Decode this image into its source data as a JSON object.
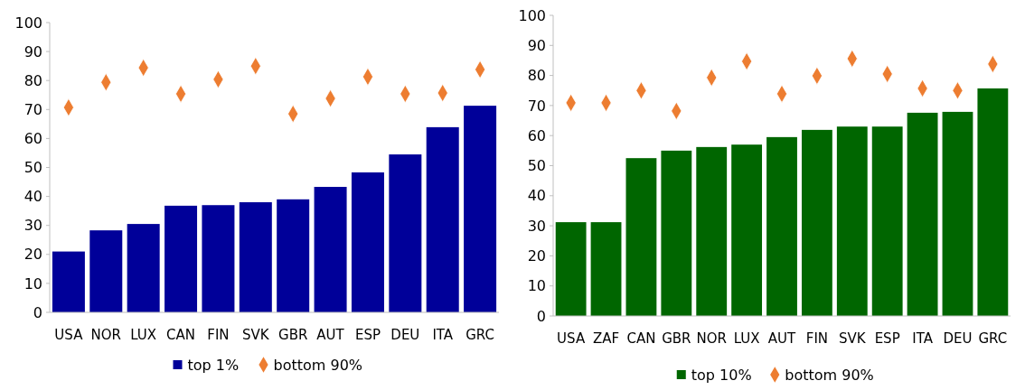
{
  "chart_data": [
    {
      "type": "bar",
      "categories": [
        "USA",
        "NOR",
        "LUX",
        "CAN",
        "FIN",
        "SVK",
        "GBR",
        "AUT",
        "ESP",
        "DEU",
        "ITA",
        "GRC"
      ],
      "series": [
        {
          "name": "top 1%",
          "color": "#000099",
          "values": [
            21,
            28.3,
            30.5,
            36.8,
            37,
            38,
            39,
            43.3,
            48.3,
            54.5,
            63.9,
            71.3
          ]
        },
        {
          "name": "bottom 90%",
          "type": "scatter",
          "marker": "diamond",
          "color": "#ed7d31",
          "values": [
            70.7,
            79.4,
            84.4,
            75.4,
            80.4,
            85,
            68.5,
            73.8,
            81.3,
            75.4,
            75.7,
            83.8
          ]
        }
      ],
      "ylim": [
        0,
        100
      ],
      "yticks": [
        0,
        10,
        20,
        30,
        40,
        50,
        60,
        70,
        80,
        90,
        100
      ],
      "legend": "bottom"
    },
    {
      "type": "bar",
      "categories": [
        "USA",
        "ZAF",
        "CAN",
        "GBR",
        "NOR",
        "LUX",
        "AUT",
        "FIN",
        "SVK",
        "ESP",
        "ITA",
        "DEU",
        "GRC"
      ],
      "series": [
        {
          "name": "top 10%",
          "color": "#006600",
          "values": [
            31.2,
            31.2,
            52.5,
            55,
            56.2,
            57,
            59.5,
            61.9,
            63,
            63,
            67.6,
            67.9,
            75.7
          ]
        },
        {
          "name": "bottom 90%",
          "type": "scatter",
          "marker": "diamond",
          "color": "#ed7d31",
          "values": [
            70.9,
            70.9,
            75,
            68.2,
            79.3,
            84.7,
            73.9,
            79.9,
            85.6,
            80.5,
            75.7,
            75,
            83.8
          ]
        }
      ],
      "ylim": [
        0,
        100
      ],
      "yticks": [
        0,
        10,
        20,
        30,
        40,
        50,
        60,
        70,
        80,
        90,
        100
      ],
      "legend": "bottom"
    }
  ]
}
